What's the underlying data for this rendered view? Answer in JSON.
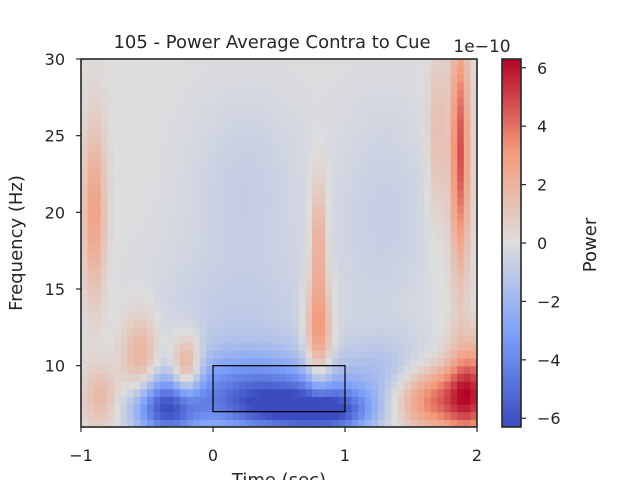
{
  "chart_data": {
    "type": "heatmap",
    "title": "105 - Power Average Contra to Cue",
    "xlabel": "Time (sec)",
    "ylabel": "Frequency (Hz)",
    "xlim": [
      -1,
      2
    ],
    "ylim": [
      6,
      30
    ],
    "x_ticks": [
      -1,
      0,
      1,
      2
    ],
    "x_tick_labels": [
      "−1",
      "0",
      "1",
      "2"
    ],
    "y_ticks": [
      10,
      15,
      20,
      25,
      30
    ],
    "y_tick_labels": [
      "10",
      "15",
      "20",
      "25",
      "30"
    ],
    "colorbar": {
      "label": "Power",
      "offset_text": "1e−10",
      "colormap": "coolwarm",
      "range": [
        -6.3,
        6.3
      ],
      "ticks": [
        -6,
        -4,
        -2,
        0,
        2,
        4,
        6
      ],
      "tick_labels": [
        "−6",
        "−4",
        "−2",
        "0",
        "2",
        "4",
        "6"
      ],
      "color_min": "#3b4cc0",
      "color_mid": "#dddddd",
      "color_max": "#b40426"
    },
    "annotation_box": {
      "x0": 0,
      "x1": 1,
      "y0": 7,
      "y1": 10
    },
    "grid": false
  }
}
